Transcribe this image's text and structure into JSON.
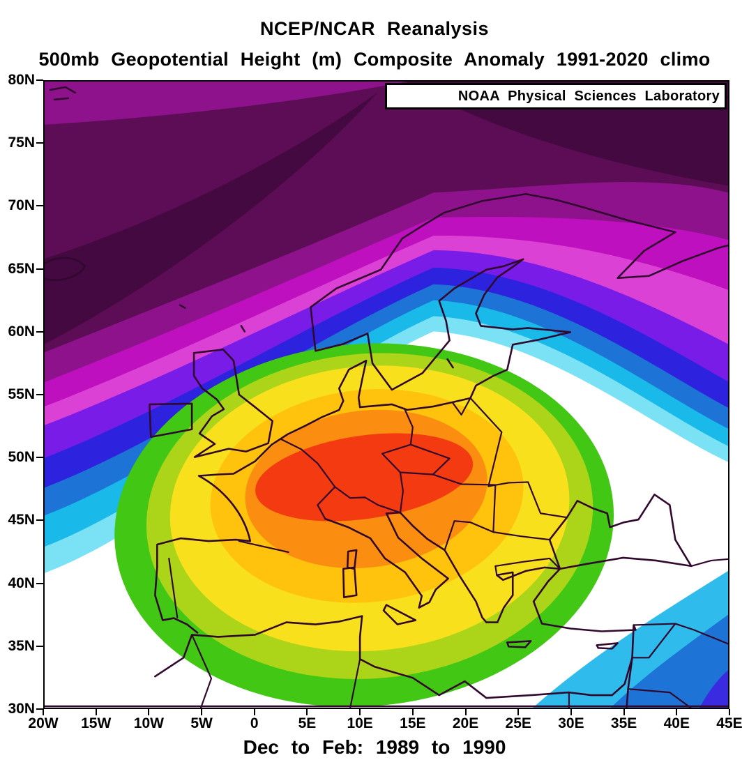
{
  "header": {
    "title_line1": "NCEP/NCAR Reanalysis",
    "title_line2": "500mb Geopotential Height (m) Composite Anomaly 1991-2020 climo"
  },
  "attribution": {
    "label": "NOAA Physical Sciences Laboratory"
  },
  "caption": {
    "text": "Dec to Feb: 1989 to 1990"
  },
  "axes": {
    "y_ticks": [
      "80N",
      "75N",
      "70N",
      "65N",
      "60N",
      "55N",
      "50N",
      "45N",
      "40N",
      "35N",
      "30N"
    ],
    "x_ticks": [
      "20W",
      "15W",
      "10W",
      "5W",
      "0",
      "5E",
      "10E",
      "15E",
      "20E",
      "25E",
      "30E",
      "35E",
      "40E",
      "45E"
    ]
  },
  "palette": {
    "darkest_purple": "#450941",
    "dark_purple": "#5C0D55",
    "purple": "#8E128C",
    "magenta": "#BE10BE",
    "pink_magenta": "#DC41D6",
    "violet": "#7A1CE8",
    "blue": "#2D23DF",
    "medium_blue": "#1E74D6",
    "cyan": "#19B9EA",
    "pale_cyan": "#7BE2F6",
    "neutral_white": "#FFFFFF",
    "se_cyan": "#2FBCEC",
    "se_indigo": "#3A2BE0",
    "green": "#41C714",
    "yellow_green": "#ACD51A",
    "yellow": "#F8E11C",
    "amber": "#FFC30D",
    "orange": "#FB8D11",
    "red_orange": "#F33A10",
    "coastline": "#31092F",
    "frame": "#000000"
  },
  "chart_data": {
    "type": "heatmap",
    "subtype": "filled-contour-map",
    "title": "NCEP/NCAR Reanalysis",
    "subtitle": "500mb Geopotential Height (m) Composite Anomaly 1991-2020 climo",
    "caption": "Dec to Feb: 1989 to 1990",
    "attribution": "NOAA Physical Sciences Laboratory",
    "x_axis": {
      "label_type": "longitude",
      "ticks": [
        "20W",
        "15W",
        "10W",
        "5W",
        "0",
        "5E",
        "10E",
        "15E",
        "20E",
        "25E",
        "30E",
        "35E",
        "40E",
        "45E"
      ],
      "range": [
        "20W",
        "45E"
      ]
    },
    "y_axis": {
      "label_type": "latitude",
      "ticks": [
        "80N",
        "75N",
        "70N",
        "65N",
        "60N",
        "55N",
        "50N",
        "45N",
        "40N",
        "35N",
        "30N"
      ],
      "range": [
        "30N",
        "80N"
      ]
    },
    "legend": "none (no colorbar shown)",
    "grid": "off",
    "band_order_negative_to_positive": [
      "darkest_purple",
      "dark_purple",
      "purple",
      "magenta",
      "pink_magenta",
      "violet",
      "blue",
      "medium_blue",
      "cyan",
      "pale_cyan",
      "neutral_white",
      "green",
      "yellow_green",
      "yellow",
      "amber",
      "orange",
      "red_orange"
    ],
    "pattern": {
      "positive_center": "large positive anomaly centered near 10E, 46N (Alps / central Europe), concentric rings red-orange core -> orange -> amber -> yellow -> yellow-green -> green",
      "negative_region": "strong negative anomaly across the north (Iceland / Scandinavia / Arctic), purple darkest, banded magenta-violet-blue-cyan ladder toward center",
      "secondary_negative": "weak negative wedge in the southeast corner (Middle East, ~40-45E near 30N): cyan -> blue -> indigo",
      "neutral": "white band separating positive and negative regions, covering SW corner and mid-east edge"
    }
  }
}
